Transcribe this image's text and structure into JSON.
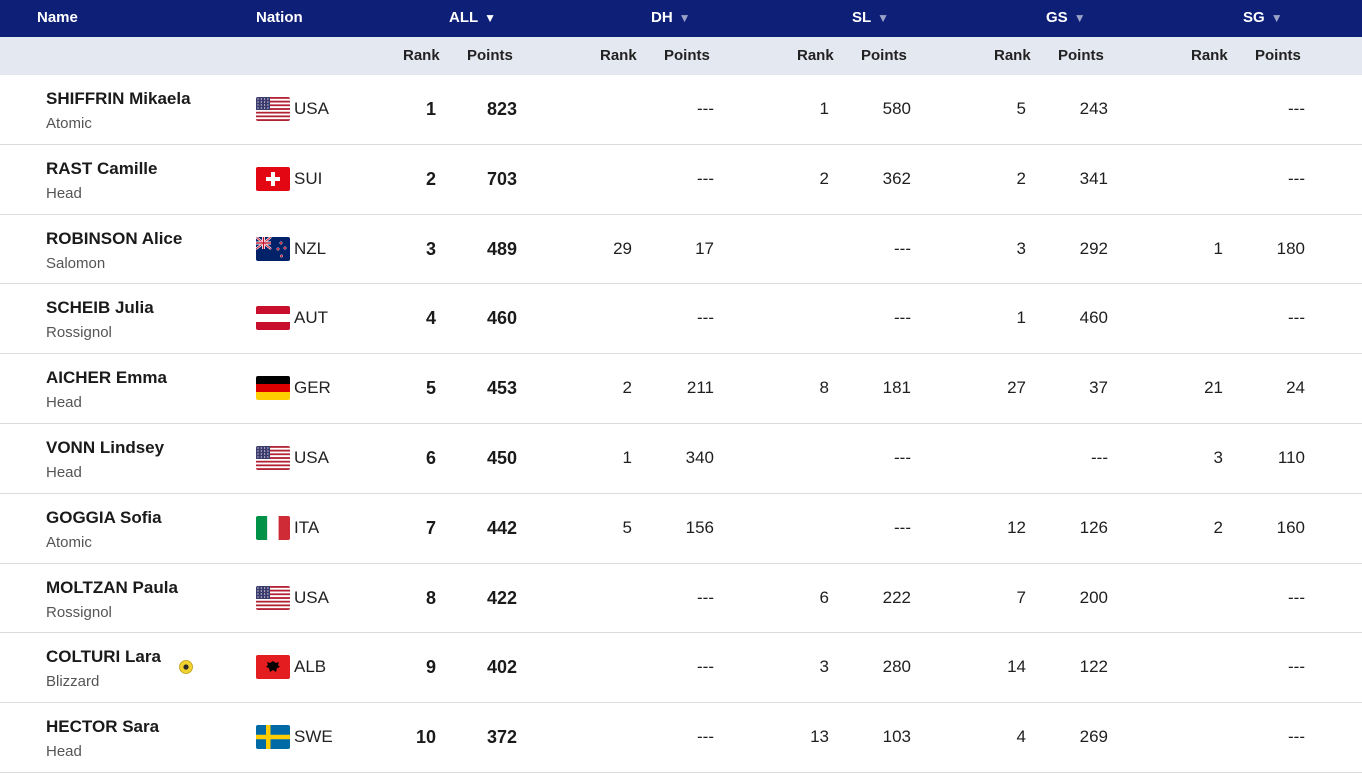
{
  "header": {
    "name": "Name",
    "nation": "Nation",
    "all": "ALL",
    "dh": "DH",
    "sl": "SL",
    "gs": "GS",
    "sg": "SG",
    "arrow": "▼"
  },
  "subheader": {
    "rank": "Rank",
    "points": "Points"
  },
  "rows": [
    {
      "name": "SHIFFRIN Mikaela",
      "brand": "Atomic",
      "nation": "USA",
      "flag": "usa-flag-icon",
      "all_rank": "1",
      "all_points": "823",
      "dh_rank": "",
      "dh_points": "---",
      "sl_rank": "1",
      "sl_points": "580",
      "gs_rank": "5",
      "gs_points": "243",
      "sg_rank": "",
      "sg_points": "---"
    },
    {
      "name": "RAST Camille",
      "brand": "Head",
      "nation": "SUI",
      "flag": "switzerland-flag-icon",
      "all_rank": "2",
      "all_points": "703",
      "dh_rank": "",
      "dh_points": "---",
      "sl_rank": "2",
      "sl_points": "362",
      "gs_rank": "2",
      "gs_points": "341",
      "sg_rank": "",
      "sg_points": "---"
    },
    {
      "name": "ROBINSON Alice",
      "brand": "Salomon",
      "nation": "NZL",
      "flag": "new-zealand-flag-icon",
      "all_rank": "3",
      "all_points": "489",
      "dh_rank": "29",
      "dh_points": "17",
      "sl_rank": "",
      "sl_points": "---",
      "gs_rank": "3",
      "gs_points": "292",
      "sg_rank": "1",
      "sg_points": "180"
    },
    {
      "name": "SCHEIB Julia",
      "brand": "Rossignol",
      "nation": "AUT",
      "flag": "austria-flag-icon",
      "all_rank": "4",
      "all_points": "460",
      "dh_rank": "",
      "dh_points": "---",
      "sl_rank": "",
      "sl_points": "---",
      "gs_rank": "1",
      "gs_points": "460",
      "sg_rank": "",
      "sg_points": "---"
    },
    {
      "name": "AICHER Emma",
      "brand": "Head",
      "nation": "GER",
      "flag": "germany-flag-icon",
      "all_rank": "5",
      "all_points": "453",
      "dh_rank": "2",
      "dh_points": "211",
      "sl_rank": "8",
      "sl_points": "181",
      "gs_rank": "27",
      "gs_points": "37",
      "sg_rank": "21",
      "sg_points": "24"
    },
    {
      "name": "VONN Lindsey",
      "brand": "Head",
      "nation": "USA",
      "flag": "usa-flag-icon",
      "all_rank": "6",
      "all_points": "450",
      "dh_rank": "1",
      "dh_points": "340",
      "sl_rank": "",
      "sl_points": "---",
      "gs_rank": "",
      "gs_points": "---",
      "sg_rank": "3",
      "sg_points": "110"
    },
    {
      "name": "GOGGIA Sofia",
      "brand": "Atomic",
      "nation": "ITA",
      "flag": "italy-flag-icon",
      "all_rank": "7",
      "all_points": "442",
      "dh_rank": "5",
      "dh_points": "156",
      "sl_rank": "",
      "sl_points": "---",
      "gs_rank": "12",
      "gs_points": "126",
      "sg_rank": "2",
      "sg_points": "160"
    },
    {
      "name": "MOLTZAN Paula",
      "brand": "Rossignol",
      "nation": "USA",
      "flag": "usa-flag-icon",
      "all_rank": "8",
      "all_points": "422",
      "dh_rank": "",
      "dh_points": "---",
      "sl_rank": "6",
      "sl_points": "222",
      "gs_rank": "7",
      "gs_points": "200",
      "sg_rank": "",
      "sg_points": "---"
    },
    {
      "name": "COLTURI Lara",
      "brand": "Blizzard",
      "nation": "ALB",
      "flag": "albania-flag-icon",
      "badge": "yellow-bib-icon",
      "all_rank": "9",
      "all_points": "402",
      "dh_rank": "",
      "dh_points": "---",
      "sl_rank": "3",
      "sl_points": "280",
      "gs_rank": "14",
      "gs_points": "122",
      "sg_rank": "",
      "sg_points": "---"
    },
    {
      "name": "HECTOR Sara",
      "brand": "Head",
      "nation": "SWE",
      "flag": "sweden-flag-icon",
      "all_rank": "10",
      "all_points": "372",
      "dh_rank": "",
      "dh_points": "---",
      "sl_rank": "13",
      "sl_points": "103",
      "gs_rank": "4",
      "gs_points": "269",
      "sg_rank": "",
      "sg_points": "---"
    }
  ]
}
